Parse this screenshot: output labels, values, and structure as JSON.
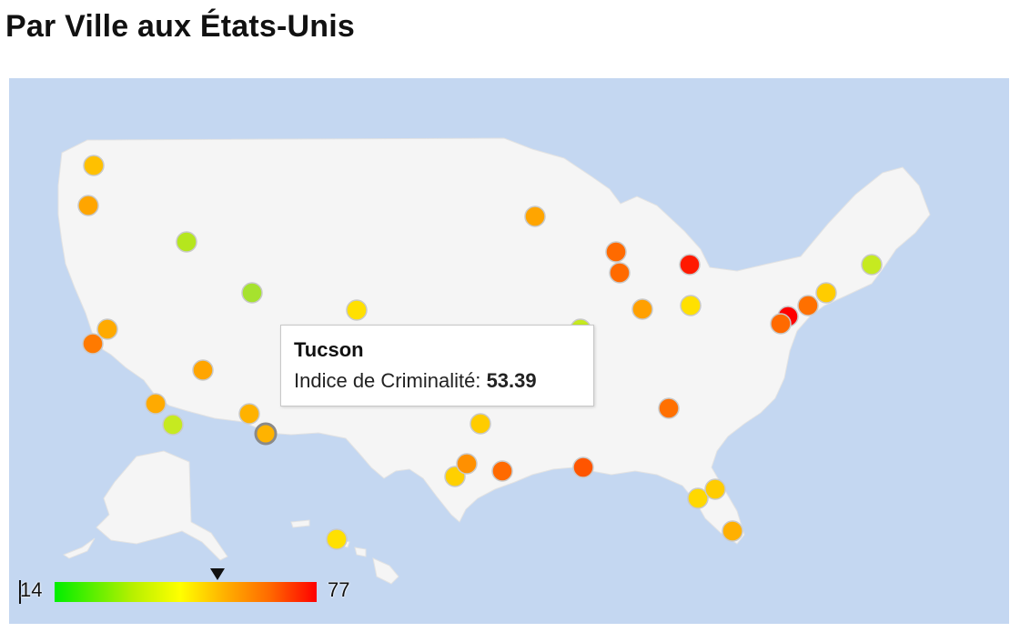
{
  "page": {
    "title": "Par Ville aux États-Unis"
  },
  "colors": {
    "ocean": "#c4d7f1",
    "land": "#f5f5f5",
    "low": "#00ee00",
    "mid": "#ffff00",
    "high": "#ff0000"
  },
  "tooltip": {
    "city": "Tucson",
    "label": "Indice de Criminalité:",
    "value": "53.39"
  },
  "legend": {
    "min": "14",
    "max": "77",
    "selected_value": 53.39
  },
  "markers": [
    {
      "id": "marker-1",
      "color": "#ffc000"
    },
    {
      "id": "marker-2",
      "color": "#ffa500"
    },
    {
      "id": "marker-3",
      "color": "#b5e61d"
    },
    {
      "id": "marker-4",
      "color": "#a6e22e"
    },
    {
      "id": "marker-5",
      "color": "#ffe000"
    },
    {
      "id": "marker-6",
      "color": "#ff7a00"
    },
    {
      "id": "marker-7",
      "color": "#ffa500"
    },
    {
      "id": "marker-8",
      "color": "#ffaa00"
    },
    {
      "id": "marker-9",
      "color": "#c6ea20"
    },
    {
      "id": "marker-10",
      "color": "#ffb200"
    },
    {
      "id": "marker-11",
      "color": "#ffb300",
      "selected": true
    },
    {
      "id": "marker-12",
      "color": "#ffa500"
    },
    {
      "id": "marker-13",
      "color": "#ff6a00"
    },
    {
      "id": "marker-14",
      "color": "#ff6a00"
    },
    {
      "id": "marker-15",
      "color": "#ff1a00"
    },
    {
      "id": "marker-16",
      "color": "#ffa000"
    },
    {
      "id": "marker-17",
      "color": "#ffe000"
    },
    {
      "id": "marker-18",
      "color": "#ff7000"
    },
    {
      "id": "marker-19",
      "color": "#ffcc00"
    },
    {
      "id": "marker-20",
      "color": "#c6ea20"
    },
    {
      "id": "marker-21",
      "color": "#ffcc00"
    },
    {
      "id": "marker-22",
      "color": "#ff6a00"
    },
    {
      "id": "marker-23",
      "color": "#ff5500"
    },
    {
      "id": "marker-24",
      "color": "#ff7000"
    },
    {
      "id": "marker-25",
      "color": "#ff0000"
    },
    {
      "id": "marker-26",
      "color": "#ff6a00"
    },
    {
      "id": "marker-27",
      "color": "#ffd000"
    },
    {
      "id": "marker-28",
      "color": "#ff9000"
    },
    {
      "id": "marker-29",
      "color": "#c6ea20"
    },
    {
      "id": "marker-30",
      "color": "#ffd800"
    },
    {
      "id": "marker-31",
      "color": "#ffcc00"
    },
    {
      "id": "marker-32",
      "color": "#ffb000"
    },
    {
      "id": "marker-33",
      "color": "#ffe000"
    },
    {
      "id": "marker-34",
      "color": "#ffaa00"
    }
  ]
}
